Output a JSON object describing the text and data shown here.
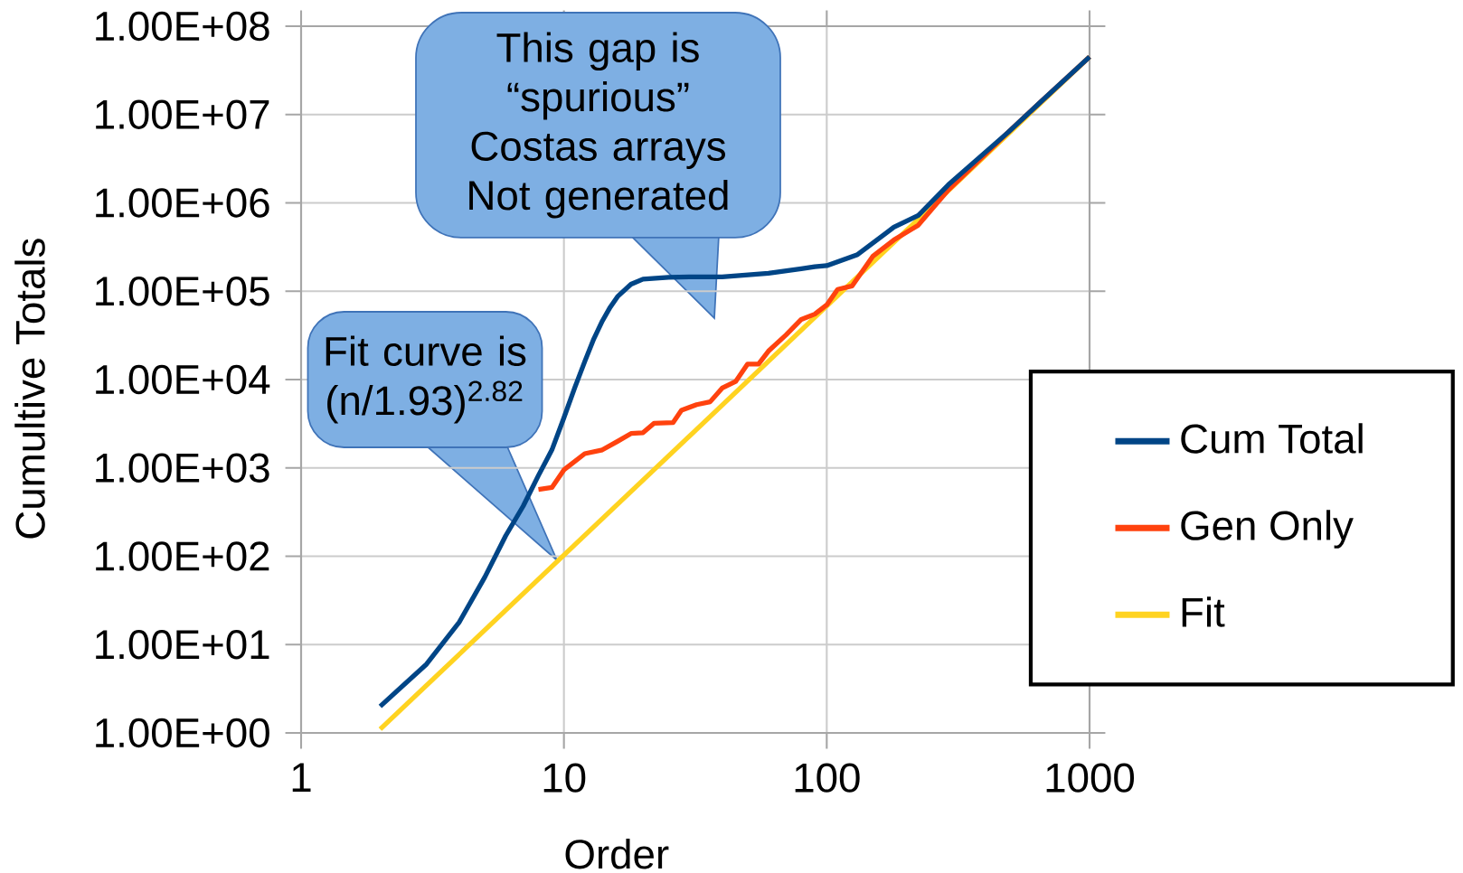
{
  "chart_data": {
    "type": "line",
    "log": "xy",
    "grid": true,
    "legend": "right",
    "xlabel": "Order",
    "ylabel": "Cumultive Totals",
    "xlim": [
      1,
      1000
    ],
    "xticks": [
      1,
      10,
      100,
      1000
    ],
    "ylim": [
      1,
      100000000
    ],
    "yticks": [
      {
        "value": 1,
        "label": "1.00E+00"
      },
      {
        "value": 10,
        "label": "1.00E+01"
      },
      {
        "value": 100,
        "label": "1.00E+02"
      },
      {
        "value": 1000,
        "label": "1.00E+03"
      },
      {
        "value": 10000,
        "label": "1.00E+04"
      },
      {
        "value": 100000,
        "label": "1.00E+05"
      },
      {
        "value": 1000000,
        "label": "1.00E+06"
      },
      {
        "value": 10000000,
        "label": "1.00E+07"
      },
      {
        "value": 100000000,
        "label": "1.00E+08"
      }
    ],
    "series": [
      {
        "name": "Cum Total",
        "color": "#004586",
        "x": [
          2,
          3,
          4,
          5,
          6,
          7,
          8,
          9,
          10,
          11,
          12,
          13,
          14,
          15,
          16,
          18,
          20,
          25,
          30,
          40,
          60,
          80,
          90,
          100,
          131,
          180,
          223,
          290,
          490,
          645,
          1000
        ],
        "values": [
          2,
          6,
          18,
          58,
          170,
          370,
          820,
          1600,
          3700,
          8100,
          16000,
          29000,
          46000,
          66000,
          87000,
          120000,
          137000,
          144000,
          145000,
          145000,
          160000,
          180000,
          190000,
          195000,
          260000,
          530000,
          720000,
          1600000,
          6300000,
          13500000,
          45000000
        ]
      },
      {
        "name": "Gen Only",
        "color": "#ff420e",
        "x": [
          8,
          9,
          10,
          12,
          14,
          16,
          18,
          20,
          22,
          26,
          28,
          32,
          36,
          40,
          45,
          50,
          55,
          60,
          70,
          80,
          90,
          100,
          110,
          125,
          150,
          180,
          223,
          290,
          490,
          645,
          1000
        ],
        "values": [
          570,
          600,
          950,
          1450,
          1600,
          2000,
          2450,
          2500,
          3200,
          3250,
          4500,
          5200,
          5600,
          8000,
          9500,
          15000,
          15000,
          21000,
          32000,
          48000,
          55000,
          70000,
          105000,
          115000,
          250000,
          380000,
          560000,
          1400000,
          6300000,
          13500000,
          45000000
        ]
      },
      {
        "name": "Fit",
        "color": "#ffd320",
        "x": [
          2,
          1000
        ],
        "values": [
          1.1,
          45000000
        ]
      }
    ],
    "annotations": [
      "This gap is “spurious” Costas arrays Not generated",
      "Fit curve is (n/1.93)$^{2.82}$"
    ]
  }
}
